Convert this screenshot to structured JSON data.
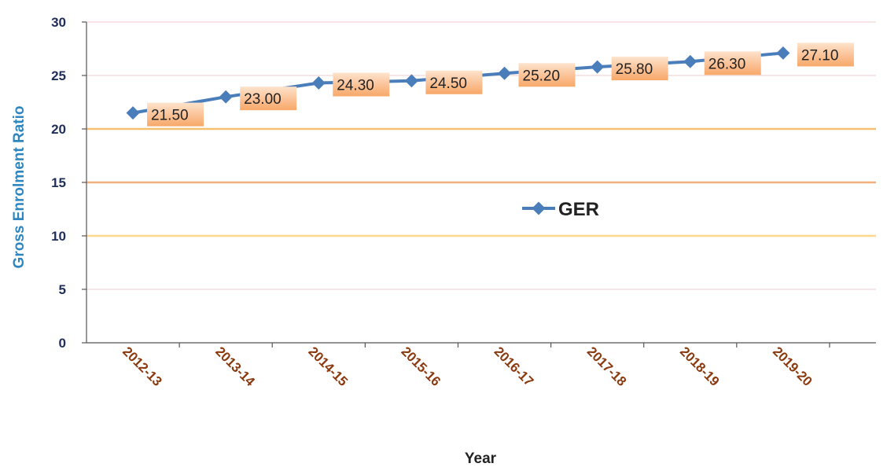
{
  "chart_data": {
    "type": "line",
    "categories": [
      "2012-13",
      "2013-14",
      "2014-15",
      "2015-16",
      "2016-17",
      "2017-18",
      "2018-19",
      "2019-20"
    ],
    "series": [
      {
        "name": "GER",
        "values": [
          21.5,
          23.0,
          24.3,
          24.5,
          25.2,
          25.8,
          26.3,
          27.1
        ],
        "labels": [
          "21.50",
          "23.00",
          "24.30",
          "24.50",
          "25.20",
          "25.80",
          "26.30",
          "27.10"
        ],
        "color": "#4a7ebb"
      }
    ],
    "xlabel": "Year",
    "ylabel": "Gross Enrolment Ratio",
    "ylim": [
      0,
      30
    ],
    "yticks": [
      "0",
      "5",
      "10",
      "15",
      "20",
      "25",
      "30"
    ],
    "legend": "center-right",
    "gridline_colors": [
      "#f6dede",
      "#f6dede",
      "#ffd890",
      "#f0b080",
      "#f4c070",
      "#f6dede",
      "#f6dede"
    ],
    "label_box_color": "#fbc49a",
    "ylabel_color": "#2e86c1",
    "xtick_color": "#8b3a10"
  }
}
